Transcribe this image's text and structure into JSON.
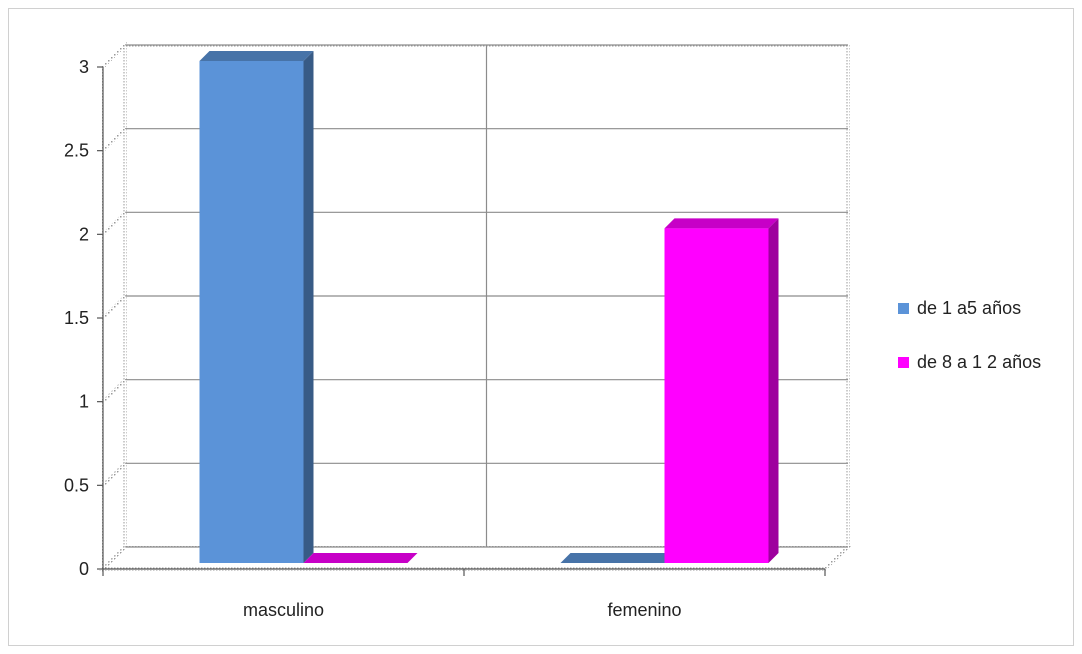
{
  "chart_data": {
    "type": "bar",
    "title": "",
    "xlabel": "",
    "ylabel": "",
    "categories": [
      "masculino",
      "femenino"
    ],
    "series": [
      {
        "name": "de 1  a5  años",
        "values": [
          3,
          0
        ],
        "color": "#5b93d8"
      },
      {
        "name": "de 8  a 1 2  años",
        "values": [
          0,
          2
        ],
        "color": "#ff00ff"
      }
    ],
    "ylim": [
      0,
      3
    ],
    "yticks": [
      "0",
      "0.5",
      "1",
      "1.5",
      "2",
      "2.5",
      "3"
    ],
    "grid": true,
    "legend_position": "right",
    "style": "3d-clustered-column"
  }
}
